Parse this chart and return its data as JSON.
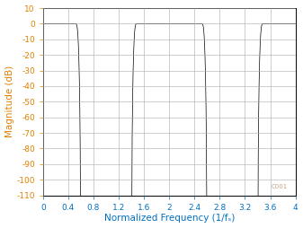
{
  "title": "",
  "xlabel": "Normalized Frequency (1/fₛ)",
  "ylabel": "Magnitude (dB)",
  "xlim": [
    0,
    4
  ],
  "ylim": [
    -110,
    10
  ],
  "xticks": [
    0,
    0.4,
    0.8,
    1.2,
    1.6,
    2.0,
    2.4,
    2.8,
    3.2,
    3.6,
    4.0
  ],
  "yticks": [
    10,
    0,
    -10,
    -20,
    -30,
    -40,
    -50,
    -60,
    -70,
    -80,
    -90,
    -100,
    -110
  ],
  "line_color": "#000000",
  "bg_color": "#ffffff",
  "grid_color": "#aaaaaa",
  "label_color_x": "#0070c0",
  "label_color_y": "#e08000",
  "watermark": "C001",
  "watermark_color": "#c8a080",
  "fig_width": 3.37,
  "fig_height": 2.54,
  "dpi": 100
}
